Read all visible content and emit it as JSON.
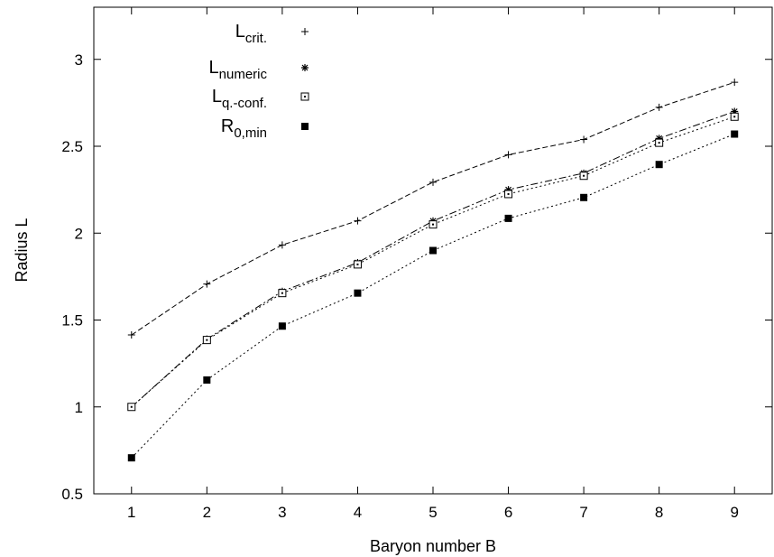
{
  "chart_data": {
    "type": "line",
    "title": "",
    "xlabel": "Baryon number B",
    "ylabel": "Radius L",
    "xlim": [
      0.5,
      9.5
    ],
    "ylim": [
      0.5,
      3.3
    ],
    "xticks": [
      1,
      2,
      3,
      4,
      5,
      6,
      7,
      8,
      9
    ],
    "yticks": [
      0.5,
      1,
      1.5,
      2,
      2.5,
      3
    ],
    "x": [
      1,
      2,
      3,
      4,
      5,
      6,
      7,
      8,
      9
    ],
    "grid": false,
    "legend_position": "top-left",
    "series": [
      {
        "name": "L",
        "subscript": "crit.",
        "marker": "plus",
        "line": "dashed",
        "values": [
          1.414,
          1.707,
          1.932,
          2.071,
          2.293,
          2.451,
          2.539,
          2.724,
          2.868
        ]
      },
      {
        "name": "L",
        "subscript": "numeric",
        "marker": "star",
        "line": "dash-dot",
        "values": [
          1.0,
          1.39,
          1.665,
          1.83,
          2.07,
          2.25,
          2.345,
          2.545,
          2.7
        ]
      },
      {
        "name": "L",
        "subscript": "q.-conf.",
        "marker": "open-square",
        "line": "dotted",
        "values": [
          1.0,
          1.385,
          1.655,
          1.82,
          2.05,
          2.225,
          2.33,
          2.52,
          2.67
        ]
      },
      {
        "name": "R",
        "subscript": "0,min",
        "marker": "filled-square",
        "line": "dotted",
        "values": [
          0.707,
          1.155,
          1.465,
          1.655,
          1.9,
          2.085,
          2.205,
          2.395,
          2.57
        ]
      }
    ]
  }
}
